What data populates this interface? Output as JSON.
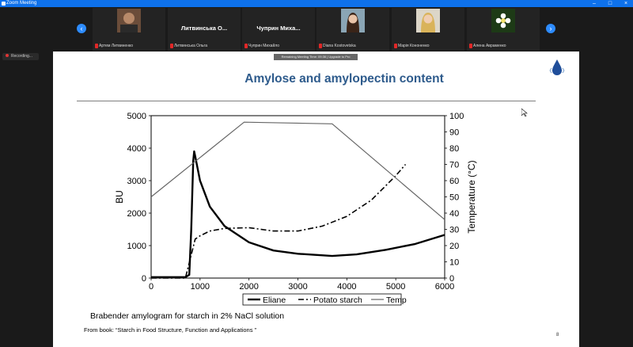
{
  "window": {
    "title": "Zoom Meeting"
  },
  "participants": [
    {
      "name": "Артем Литвиненко",
      "avatar": "photo"
    },
    {
      "name": "Литвинська Ольга",
      "display": "Литвинська О..."
    },
    {
      "name": "Чуприн Михайло",
      "display": "Чуприн Миха..."
    },
    {
      "name": "Diana Kostovetska",
      "avatar": "photo"
    },
    {
      "name": "Марія Кононенко",
      "avatar": "photo"
    },
    {
      "name": "Алена Авраменко",
      "avatar": "photo"
    }
  ],
  "recording": {
    "label": "Recording..."
  },
  "timer": {
    "text": "Remaining Meeting Time: 09:36 | Upgrade to Pro"
  },
  "slide": {
    "title": "Amylose and amylopectin content",
    "caption": "Brabender amylogram for  starch in 2% NaCl solution",
    "source": "From book: “Starch in Food Structure, Function and Applications ”",
    "page_number": "8"
  },
  "chart_data": {
    "type": "line",
    "xlim": [
      0,
      6000
    ],
    "ylim": [
      0,
      5000
    ],
    "y2lim": [
      0,
      100
    ],
    "ylabel": "BU",
    "y2label": "Temperature (°C)",
    "xticks": [
      "0",
      "1000",
      "2000",
      "3000",
      "4000",
      "5000",
      "6000"
    ],
    "yticks": [
      "0",
      "1000",
      "2000",
      "3000",
      "4000",
      "5000"
    ],
    "y2ticks": [
      "0",
      "10",
      "20",
      "30",
      "40",
      "50",
      "60",
      "70",
      "80",
      "90",
      "100"
    ],
    "legend": "bottom",
    "series": [
      {
        "name": "Eliane",
        "axis": "left",
        "style": "solid-thick",
        "x": [
          0,
          700,
          780,
          820,
          860,
          880,
          900,
          1000,
          1200,
          1500,
          2000,
          2500,
          3000,
          3700,
          4200,
          4800,
          5400,
          6000
        ],
        "y": [
          30,
          30,
          100,
          1500,
          3600,
          3900,
          3750,
          3000,
          2200,
          1600,
          1100,
          850,
          750,
          680,
          730,
          870,
          1050,
          1330
        ]
      },
      {
        "name": "Potato starch",
        "axis": "left",
        "style": "dash-dot",
        "x": [
          0,
          700,
          800,
          900,
          1000,
          1200,
          1500,
          2000,
          2500,
          3000,
          3500,
          4000,
          4500,
          5000,
          5200
        ],
        "y": [
          0,
          0,
          600,
          1200,
          1300,
          1450,
          1530,
          1550,
          1450,
          1450,
          1600,
          1900,
          2400,
          3150,
          3500
        ]
      },
      {
        "name": "Temp",
        "axis": "right",
        "style": "thin",
        "x": [
          0,
          1900,
          3700,
          6000
        ],
        "y": [
          50,
          96,
          95,
          36
        ]
      }
    ]
  }
}
